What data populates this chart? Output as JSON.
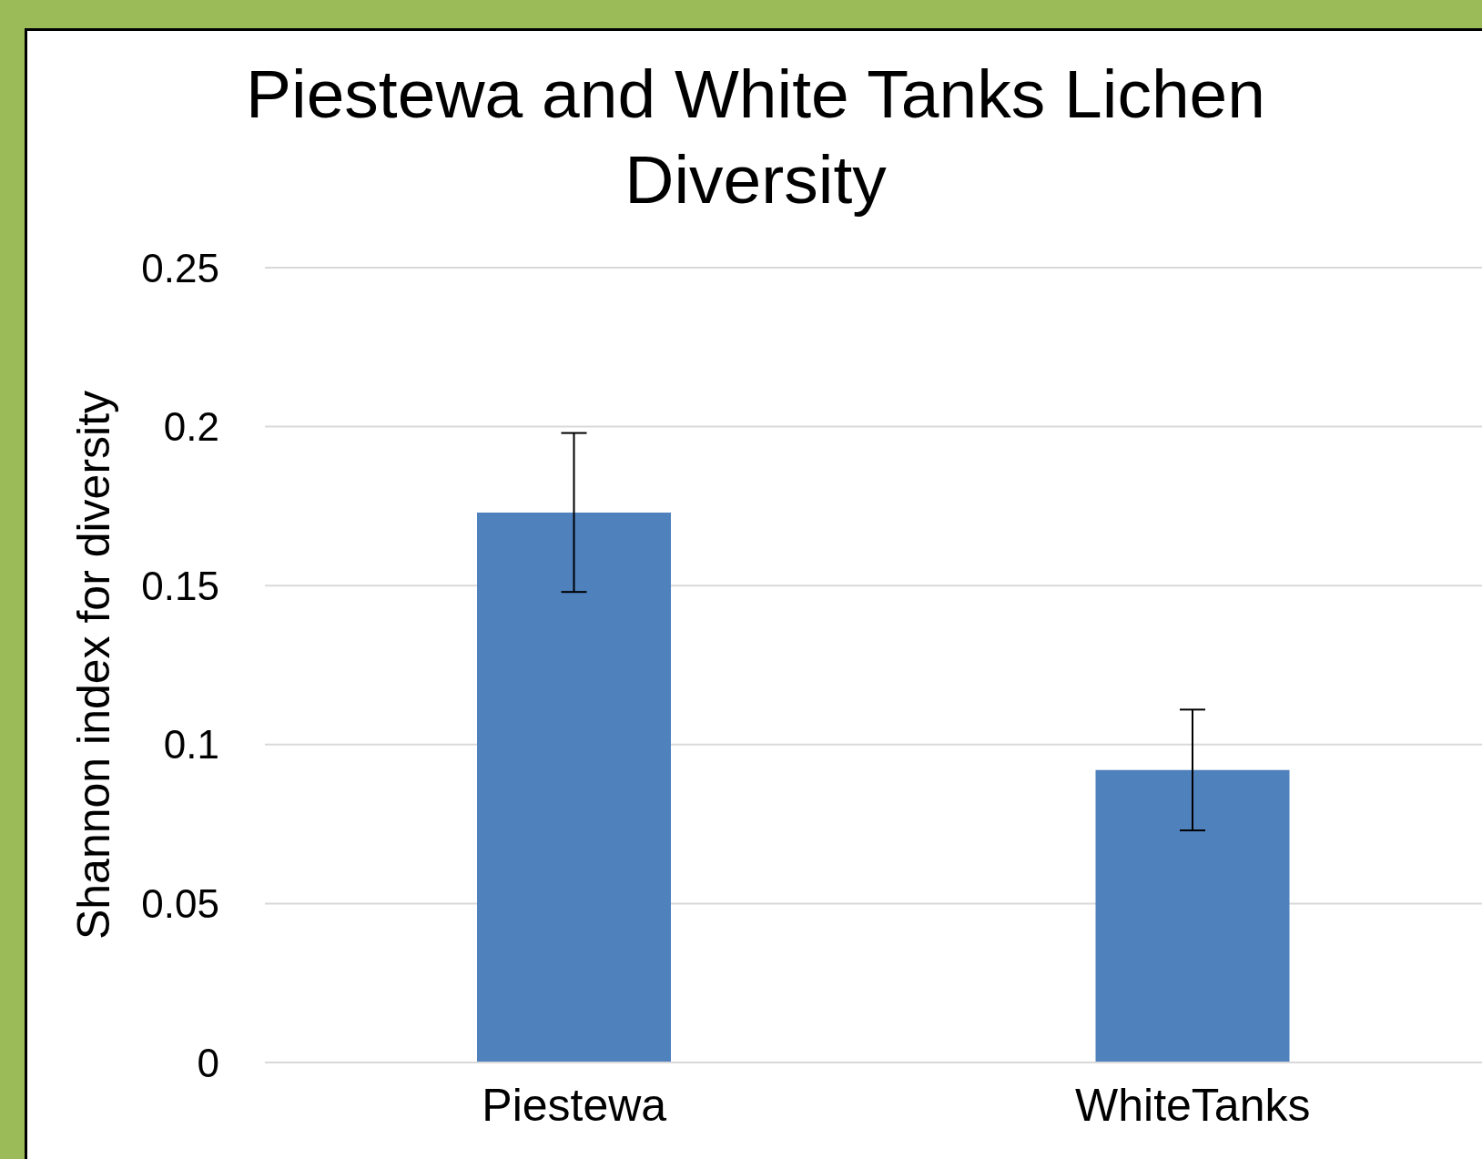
{
  "chart_data": {
    "type": "bar",
    "title": "Piestewa and White Tanks Lichen Diversity",
    "ylabel": "Shannon index for diversity",
    "categories": [
      "Piestewa",
      "WhiteTanks"
    ],
    "values": [
      0.173,
      0.092
    ],
    "errors": [
      0.025,
      0.019
    ],
    "color": "#4f81bd",
    "ylim": [
      0,
      0.25
    ],
    "yticks": [
      0,
      0.05,
      0.1,
      0.15,
      0.2,
      0.25
    ],
    "grid": "y"
  }
}
